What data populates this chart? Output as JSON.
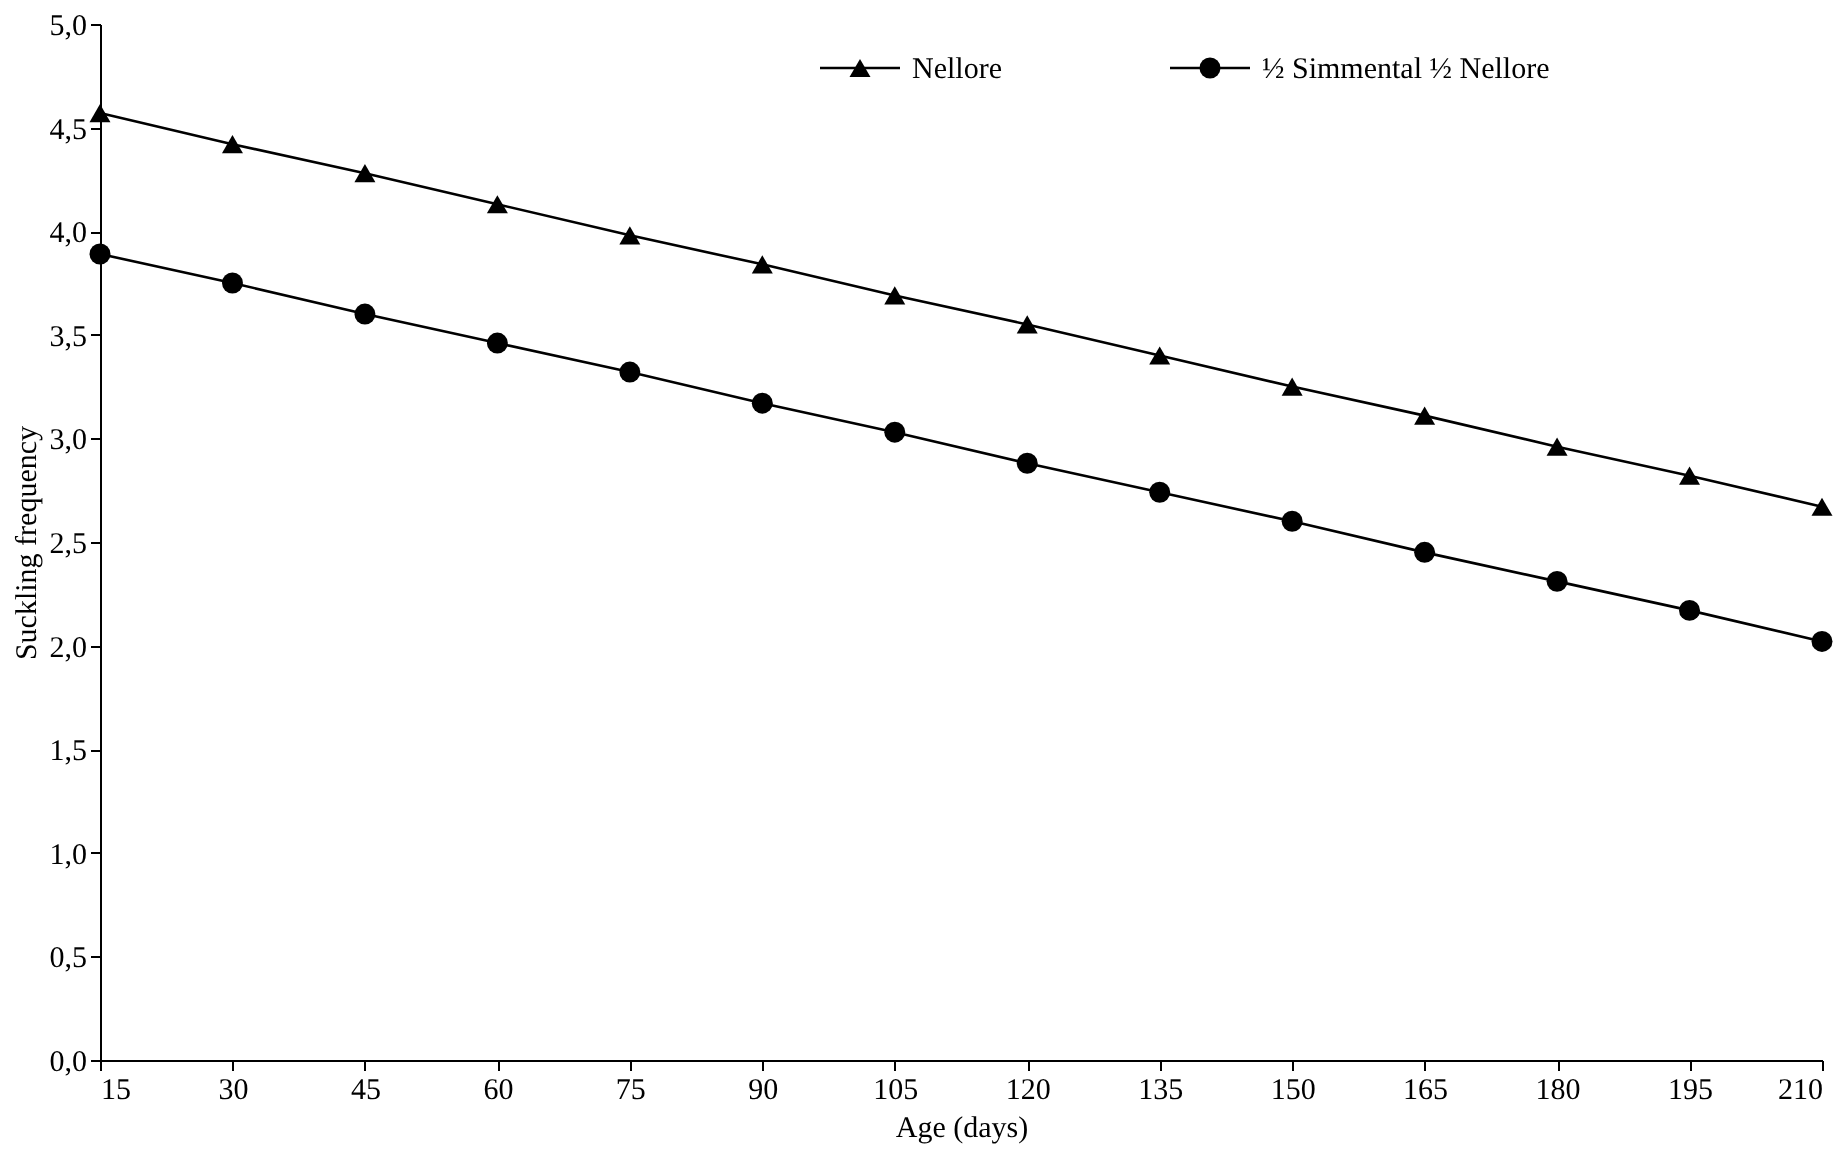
{
  "chart_data": {
    "type": "line",
    "xlabel": "Age (days)",
    "ylabel": "Suckling frequency",
    "x": [
      15,
      30,
      45,
      60,
      75,
      90,
      105,
      120,
      135,
      150,
      165,
      180,
      195,
      210
    ],
    "series": [
      {
        "name": "Nellore",
        "color": "#000000",
        "marker": "triangle",
        "values": [
          4.57,
          4.42,
          4.28,
          4.13,
          3.98,
          3.84,
          3.69,
          3.55,
          3.4,
          3.25,
          3.11,
          2.96,
          2.82,
          2.67
        ]
      },
      {
        "name": "½ Simmental ½ Nellore",
        "color": "#000000",
        "marker": "circle",
        "values": [
          3.89,
          3.75,
          3.6,
          3.46,
          3.32,
          3.17,
          3.03,
          2.88,
          2.74,
          2.6,
          2.45,
          2.31,
          2.17,
          2.02
        ]
      }
    ],
    "xlim": [
      15,
      210
    ],
    "xticks": [
      15,
      30,
      45,
      60,
      75,
      90,
      105,
      120,
      135,
      150,
      165,
      180,
      195,
      210
    ],
    "ylim": [
      0,
      5
    ],
    "yticks": [
      {
        "value": 0,
        "label": "0,0"
      },
      {
        "value": 0.5,
        "label": "0,5"
      },
      {
        "value": 1,
        "label": "1,0"
      },
      {
        "value": 1.5,
        "label": "1,5"
      },
      {
        "value": 2,
        "label": "2,0"
      },
      {
        "value": 2.5,
        "label": "2,5"
      },
      {
        "value": 3,
        "label": "3,0"
      },
      {
        "value": 3.5,
        "label": "3,5"
      },
      {
        "value": 4,
        "label": "4,0"
      },
      {
        "value": 4.5,
        "label": "4,5"
      },
      {
        "value": 5,
        "label": "5,0"
      }
    ],
    "grid": false,
    "legend": "top right",
    "line_style": "solid"
  }
}
